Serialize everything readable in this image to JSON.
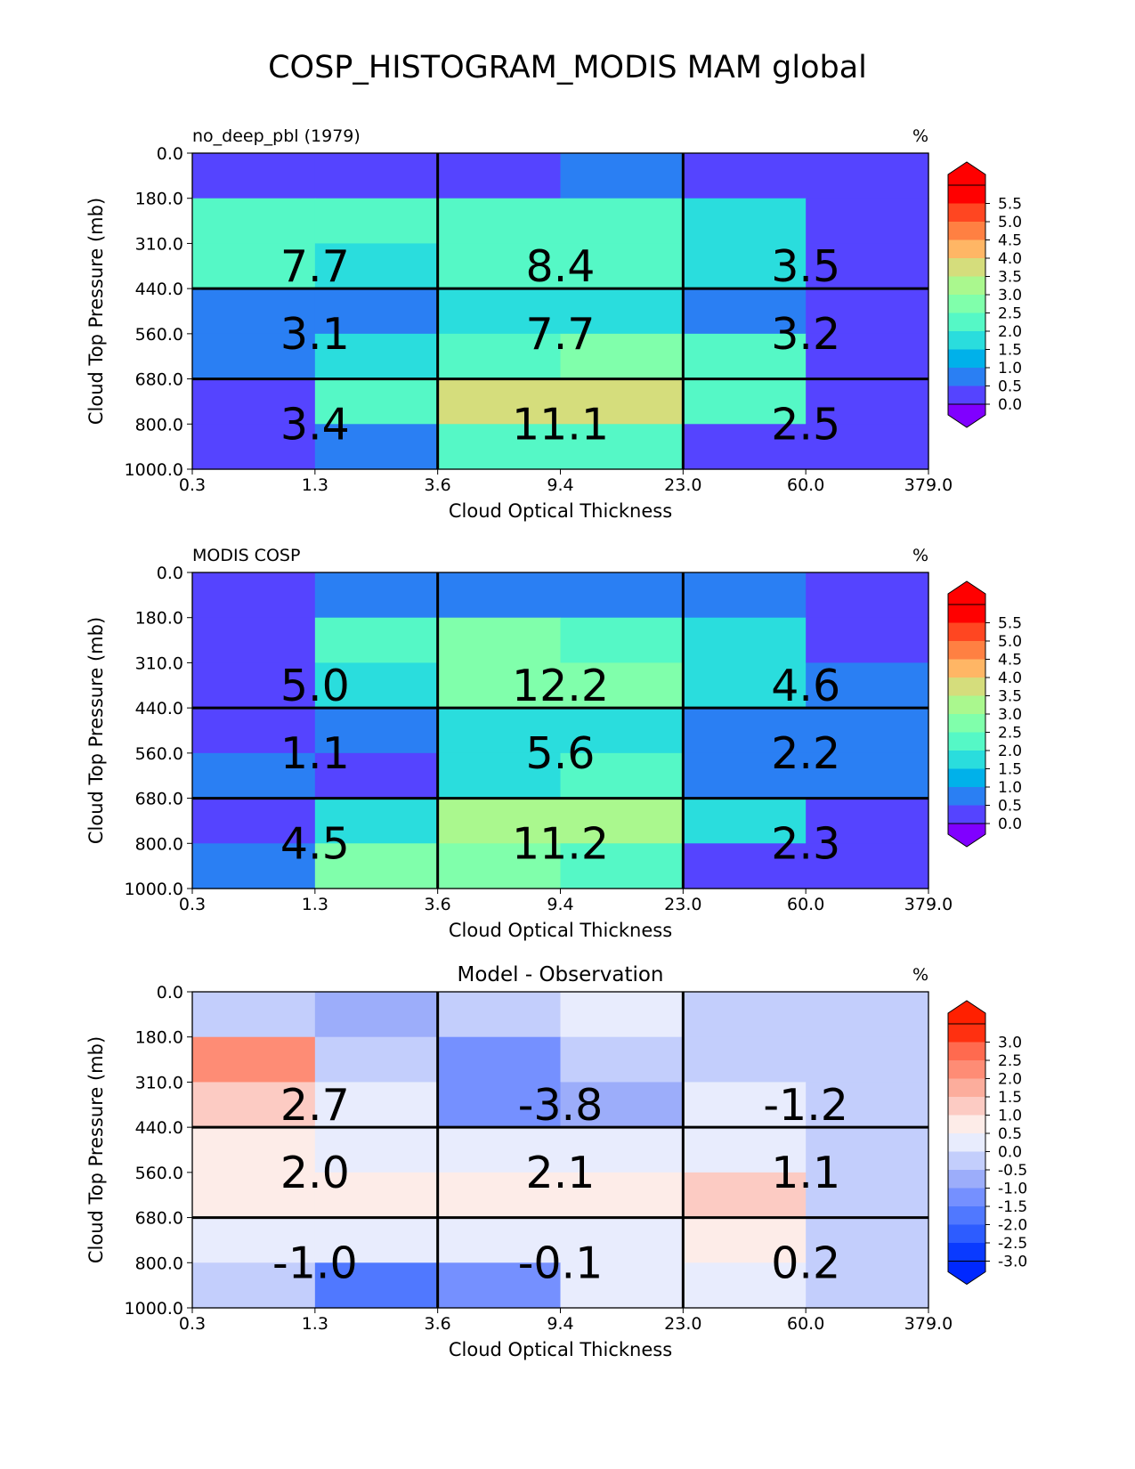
{
  "title": "COSP_HISTOGRAM_MODIS MAM global",
  "chart_data": [
    {
      "type": "heatmap",
      "title": "",
      "left_title": "no_deep_pbl (1979)",
      "units": "%",
      "xlabel": "Cloud Optical Thickness",
      "ylabel": "Cloud Top Pressure (mb)",
      "x_ticks": [
        "0.3",
        "1.3",
        "3.6",
        "9.4",
        "23.0",
        "60.0",
        "379.0"
      ],
      "y_ticks": [
        "0.0",
        "180.0",
        "310.0",
        "440.0",
        "560.0",
        "680.0",
        "800.0",
        "1000.0"
      ],
      "cell_values": [
        [
          0.4,
          0.4,
          0.4,
          0.8,
          0.4,
          0.4
        ],
        [
          2.3,
          2.0,
          2.0,
          2.0,
          1.5,
          0.4
        ],
        [
          2.0,
          1.5,
          2.0,
          2.3,
          1.5,
          0.4
        ],
        [
          0.8,
          0.8,
          1.5,
          1.5,
          0.8,
          0.4
        ],
        [
          0.8,
          1.5,
          2.3,
          2.8,
          2.0,
          0.4
        ],
        [
          0.4,
          2.0,
          3.8,
          3.8,
          2.0,
          0.4
        ],
        [
          0.4,
          0.8,
          2.0,
          2.0,
          0.4,
          0.4
        ]
      ],
      "group_labels": [
        [
          "7.7",
          "8.4",
          "3.5"
        ],
        [
          "3.1",
          "7.7",
          "3.2"
        ],
        [
          "3.4",
          "11.1",
          "2.5"
        ]
      ],
      "colorbar": {
        "ticks": [
          "5.5",
          "5.0",
          "4.5",
          "4.0",
          "3.5",
          "3.0",
          "2.5",
          "2.0",
          "1.5",
          "1.0",
          "0.5",
          "0.0"
        ],
        "levels": [
          0.0,
          0.5,
          1.0,
          1.5,
          2.0,
          2.5,
          3.0,
          3.5,
          4.0,
          4.5,
          5.0,
          5.5
        ],
        "colors": [
          "#5544ff",
          "#2a7ff3",
          "#00b1ea",
          "#2adddd",
          "#55f8c6",
          "#80ffab",
          "#aaf88e",
          "#d5dd7c",
          "#ffb665",
          "#ff8042",
          "#ff4621",
          "#ff0000"
        ],
        "under_color": "#8000ff",
        "over_color": "#ff0000"
      }
    },
    {
      "type": "heatmap",
      "title": "",
      "left_title": "MODIS COSP",
      "units": "%",
      "xlabel": "Cloud Optical Thickness",
      "ylabel": "Cloud Top Pressure (mb)",
      "x_ticks": [
        "0.3",
        "1.3",
        "3.6",
        "9.4",
        "23.0",
        "60.0",
        "379.0"
      ],
      "y_ticks": [
        "0.0",
        "180.0",
        "310.0",
        "440.0",
        "560.0",
        "680.0",
        "800.0",
        "1000.0"
      ],
      "cell_values": [
        [
          0.4,
          0.8,
          0.8,
          0.8,
          0.8,
          0.4
        ],
        [
          0.4,
          2.3,
          2.8,
          2.3,
          1.5,
          0.4
        ],
        [
          0.4,
          1.5,
          2.8,
          2.8,
          1.5,
          0.8
        ],
        [
          0.4,
          0.8,
          1.5,
          1.5,
          0.8,
          0.8
        ],
        [
          0.8,
          0.4,
          1.5,
          2.0,
          0.8,
          0.8
        ],
        [
          0.4,
          1.5,
          3.3,
          3.3,
          1.5,
          0.4
        ],
        [
          0.8,
          2.8,
          2.8,
          2.0,
          0.4,
          0.4
        ]
      ],
      "group_labels": [
        [
          "5.0",
          "12.2",
          "4.6"
        ],
        [
          "1.1",
          "5.6",
          "2.2"
        ],
        [
          "4.5",
          "11.2",
          "2.3"
        ]
      ],
      "colorbar": {
        "ticks": [
          "5.5",
          "5.0",
          "4.5",
          "4.0",
          "3.5",
          "3.0",
          "2.5",
          "2.0",
          "1.5",
          "1.0",
          "0.5",
          "0.0"
        ],
        "levels": [
          0.0,
          0.5,
          1.0,
          1.5,
          2.0,
          2.5,
          3.0,
          3.5,
          4.0,
          4.5,
          5.0,
          5.5
        ],
        "colors": [
          "#5544ff",
          "#2a7ff3",
          "#00b1ea",
          "#2adddd",
          "#55f8c6",
          "#80ffab",
          "#aaf88e",
          "#d5dd7c",
          "#ffb665",
          "#ff8042",
          "#ff4621",
          "#ff0000"
        ],
        "under_color": "#8000ff",
        "over_color": "#ff0000"
      }
    },
    {
      "type": "heatmap",
      "title": "Model - Observation",
      "left_title": "",
      "units": "%",
      "xlabel": "Cloud Optical Thickness",
      "ylabel": "Cloud Top Pressure (mb)",
      "x_ticks": [
        "0.3",
        "1.3",
        "3.6",
        "9.4",
        "23.0",
        "60.0",
        "379.0"
      ],
      "y_ticks": [
        "0.0",
        "180.0",
        "310.0",
        "440.0",
        "560.0",
        "680.0",
        "800.0",
        "1000.0"
      ],
      "cell_values": [
        [
          -0.2,
          -0.8,
          -0.2,
          0.2,
          -0.2,
          -0.2
        ],
        [
          2.2,
          -0.2,
          -1.2,
          -0.2,
          -0.2,
          -0.2
        ],
        [
          1.2,
          0.2,
          -1.2,
          -0.8,
          0.2,
          -0.2
        ],
        [
          0.7,
          0.2,
          0.2,
          0.2,
          0.2,
          -0.2
        ],
        [
          0.7,
          0.7,
          0.7,
          0.7,
          1.2,
          -0.2
        ],
        [
          0.2,
          0.2,
          0.2,
          0.2,
          0.7,
          -0.2
        ],
        [
          -0.2,
          -1.7,
          -1.2,
          0.2,
          0.2,
          -0.2
        ]
      ],
      "group_labels": [
        [
          "2.7",
          "-3.8",
          "-1.2"
        ],
        [
          "2.0",
          "2.1",
          "1.1"
        ],
        [
          "-1.0",
          "-0.1",
          "0.2"
        ]
      ],
      "colorbar": {
        "ticks": [
          "3.0",
          "2.5",
          "2.0",
          "1.5",
          "1.0",
          "0.5",
          "0.0",
          "-0.5",
          "-1.0",
          "-1.5",
          "-2.0",
          "-2.5",
          "-3.0"
        ],
        "levels": [
          -3.0,
          -2.5,
          -2.0,
          -1.5,
          -1.0,
          -0.5,
          0.0,
          0.5,
          1.0,
          1.5,
          2.0,
          2.5,
          3.0
        ],
        "colors": [
          "#0a3aff",
          "#2d5cff",
          "#5078ff",
          "#7590ff",
          "#9cadfa",
          "#c3cefc",
          "#e8ecfd",
          "#fdece8",
          "#fccbc3",
          "#fcad9c",
          "#fe8c75",
          "#ff6a4f",
          "#ff3010"
        ],
        "under_color": "#0028ff",
        "over_color": "#ff2000"
      }
    }
  ]
}
